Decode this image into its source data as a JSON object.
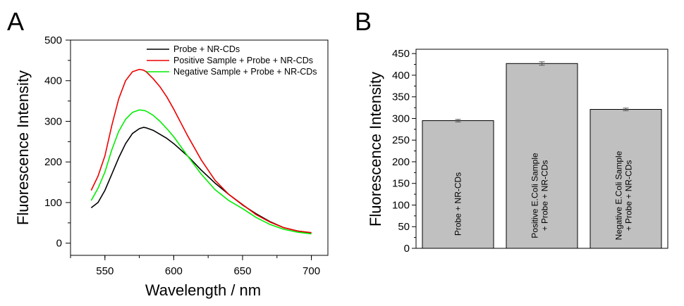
{
  "panels": {
    "a": "A",
    "b": "B"
  },
  "chart_data": [
    {
      "type": "line",
      "xlabel": "Wavelength / nm",
      "ylabel": "Fluorescence Intensity",
      "xlim": [
        525,
        712
      ],
      "ylim": [
        -30,
        500
      ],
      "xticks": [
        550,
        600,
        650,
        700
      ],
      "yticks": [
        0,
        100,
        200,
        300,
        400,
        500
      ],
      "legend_position": "top-right",
      "series": [
        {
          "name": "Probe + NR-CDs",
          "color": "#000000",
          "x": [
            540,
            545,
            550,
            555,
            560,
            565,
            570,
            575,
            578,
            580,
            585,
            590,
            595,
            600,
            610,
            620,
            630,
            640,
            650,
            660,
            670,
            680,
            690,
            700
          ],
          "y": [
            87,
            100,
            130,
            170,
            210,
            245,
            270,
            282,
            285,
            284,
            278,
            268,
            258,
            245,
            215,
            180,
            148,
            120,
            94,
            72,
            53,
            38,
            30,
            25
          ]
        },
        {
          "name": "Positive Sample + Probe + NR-CDs",
          "color": "#ee0000",
          "x": [
            540,
            545,
            550,
            555,
            560,
            565,
            570,
            575,
            578,
            580,
            585,
            590,
            595,
            600,
            610,
            620,
            630,
            640,
            650,
            660,
            670,
            680,
            690,
            700
          ],
          "y": [
            130,
            165,
            215,
            290,
            355,
            400,
            422,
            428,
            426,
            422,
            405,
            385,
            360,
            330,
            265,
            205,
            155,
            120,
            95,
            70,
            52,
            38,
            30,
            26
          ]
        },
        {
          "name": "Negative Sample + Probe + NR-CDs",
          "color": "#00ee00",
          "x": [
            540,
            545,
            550,
            555,
            560,
            565,
            570,
            575,
            578,
            580,
            585,
            590,
            595,
            600,
            610,
            620,
            630,
            640,
            650,
            660,
            670,
            680,
            690,
            700
          ],
          "y": [
            105,
            135,
            175,
            230,
            275,
            305,
            322,
            328,
            327,
            325,
            315,
            300,
            282,
            262,
            215,
            170,
            132,
            105,
            85,
            63,
            46,
            34,
            27,
            23
          ]
        }
      ]
    },
    {
      "type": "bar",
      "ylabel": "Fluorescence Intensity",
      "ylim": [
        0,
        460
      ],
      "yticks": [
        0,
        50,
        100,
        150,
        200,
        250,
        300,
        350,
        400,
        450
      ],
      "bar_color": "#c0c0c0",
      "categories": [
        {
          "line1": "Probe + NR-CDs",
          "line2": ""
        },
        {
          "line1": "Positive E.Coli Sample",
          "line2": "+ Probe + NR-CDs"
        },
        {
          "line1": "Negative E.Coli Sample",
          "line2": "+ Probe + NR-CDs"
        }
      ],
      "values": [
        295,
        427,
        321
      ],
      "errors": [
        3,
        4,
        3
      ]
    }
  ]
}
